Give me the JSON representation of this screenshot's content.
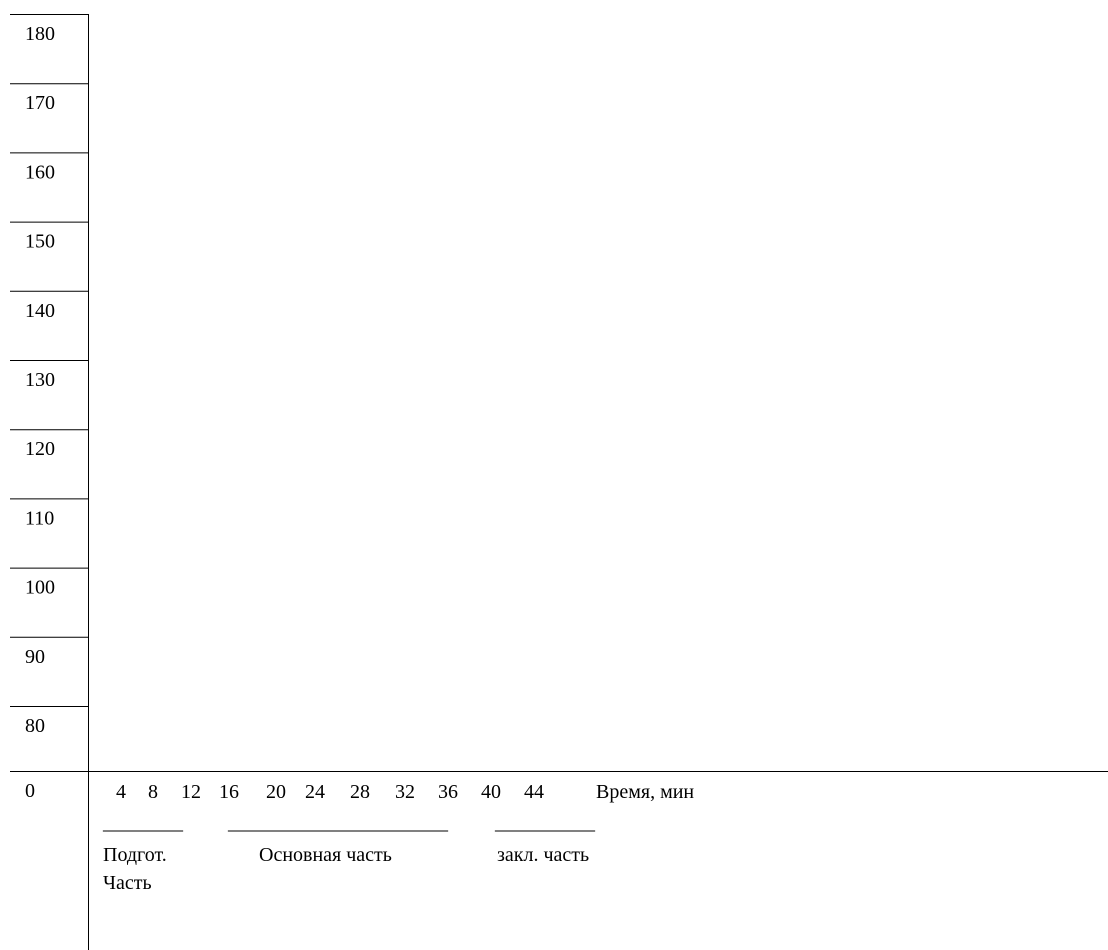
{
  "chart_data": {
    "type": "line",
    "y_ticks": [
      "180",
      "170",
      "160",
      "150",
      "140",
      "130",
      "120",
      "110",
      "100",
      "90",
      "80"
    ],
    "origin_label": "0",
    "x_ticks": [
      "4",
      "8",
      "12",
      "16",
      "20",
      "24",
      "28",
      "32",
      "36",
      "40",
      "44"
    ],
    "xlabel": "Время, мин",
    "phases": [
      {
        "line": "________",
        "label": "Подгот.",
        "label2": "Часть"
      },
      {
        "line": "______________________",
        "label": "Основная часть"
      },
      {
        "line": "__________",
        "label": "закл. часть"
      }
    ],
    "series": [],
    "grid": false
  }
}
